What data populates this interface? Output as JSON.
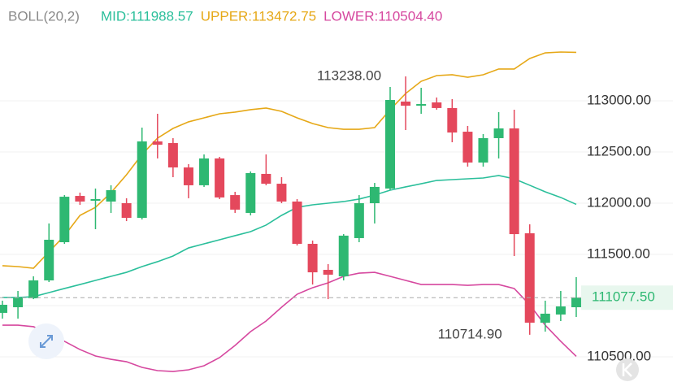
{
  "chart_data": {
    "type": "candlestick",
    "indicator": "BOLL(20,2)",
    "up_color": "#2eb872",
    "down_color": "#e4485c",
    "open": [
      110929,
      110984,
      111071,
      111246,
      111619,
      112071,
      112024,
      112016,
      112000,
      111857,
      112603,
      112587,
      112349,
      112175,
      112437,
      112079,
      111905,
      112286,
      112190,
      112016,
      111603,
      111349,
      111286,
      111659,
      112000,
      112143,
      112992,
      112952,
      112984,
      112929,
      112698,
      112397,
      112635,
      112730,
      111706,
      110833,
      110913,
      110984
    ],
    "high": [
      111048,
      111143,
      111286,
      111802,
      112079,
      112103,
      112143,
      112175,
      112048,
      112738,
      112873,
      112635,
      112381,
      112476,
      112452,
      112111,
      112310,
      112476,
      112254,
      112040,
      111635,
      111405,
      111698,
      112079,
      112198,
      113135,
      113238,
      113127,
      113032,
      113016,
      112754,
      112675,
      112889,
      112913,
      111794,
      111048,
      111143,
      111278
    ],
    "low": [
      110873,
      110873,
      111063,
      111230,
      111603,
      111984,
      111746,
      111905,
      111825,
      111841,
      112437,
      112254,
      112048,
      112159,
      112040,
      111905,
      111881,
      112175,
      112000,
      111587,
      111206,
      111063,
      111246,
      111619,
      111802,
      112127,
      112714,
      112873,
      112913,
      112595,
      112357,
      112357,
      112437,
      111484,
      110714.9,
      110746,
      110849,
      110889
    ],
    "close": [
      111008,
      111079,
      111246,
      111643,
      112063,
      112016,
      112040,
      112127,
      111857,
      112603,
      112571,
      112349,
      112175,
      112437,
      112056,
      111937,
      112294,
      112190,
      112016,
      111603,
      111325,
      111302,
      111683,
      112000,
      112159,
      113008,
      112952,
      112968,
      112929,
      112690,
      112397,
      112635,
      112730,
      111698,
      110833,
      110921,
      110992,
      111077.5
    ],
    "bands": [
      {
        "legend": "MID:111988.57",
        "color": "#2bbf9b",
        "values": [
          111079,
          111079,
          111087,
          111127,
          111167,
          111206,
          111246,
          111286,
          111325,
          111381,
          111429,
          111484,
          111563,
          111603,
          111643,
          111683,
          111722,
          111786,
          111881,
          111960,
          111984,
          112000,
          112016,
          112040,
          112079,
          112127,
          112159,
          112190,
          112222,
          112230,
          112238,
          112246,
          112270,
          112238,
          112175,
          112111,
          112056,
          111988.57
        ]
      },
      {
        "legend": "UPPER:113472.75",
        "color": "#e6a817",
        "values": [
          111389,
          111381,
          111365,
          111524,
          111683,
          111881,
          111960,
          112103,
          112278,
          112476,
          112635,
          112730,
          112794,
          112833,
          112873,
          112889,
          112913,
          112929,
          112897,
          112833,
          112778,
          112738,
          112722,
          112722,
          112738,
          112913,
          113071,
          113190,
          113246,
          113254,
          113230,
          113254,
          113310,
          113310,
          113413,
          113468,
          113476,
          113472.75
        ]
      },
      {
        "legend": "LOWER:110504.40",
        "color": "#d6489f",
        "values": [
          110809,
          110809,
          110794,
          110730,
          110651,
          110571,
          110508,
          110476,
          110452,
          110397,
          110365,
          110357,
          110373,
          110413,
          110492,
          110611,
          110746,
          110849,
          110984,
          111111,
          111175,
          111222,
          111286,
          111317,
          111325,
          111286,
          111246,
          111206,
          111206,
          111206,
          111198,
          111206,
          111206,
          111167,
          111008,
          110809,
          110651,
          110504.4
        ]
      }
    ],
    "max_label": "113238.00",
    "min_label": "110714.90",
    "last_price": {
      "value": 111077.5,
      "label": "111077.50"
    },
    "ylim": [
      110254,
      113984
    ],
    "yticks": [
      {
        "value": 110500,
        "label": "110500.00"
      },
      {
        "value": 111000,
        "label": "111000.00"
      },
      {
        "value": 111500,
        "label": "111500.00"
      },
      {
        "value": 112000,
        "label": "112000.00"
      },
      {
        "value": 112500,
        "label": "112500.00"
      },
      {
        "value": 113000,
        "label": "113000.00"
      }
    ],
    "grid": true
  }
}
